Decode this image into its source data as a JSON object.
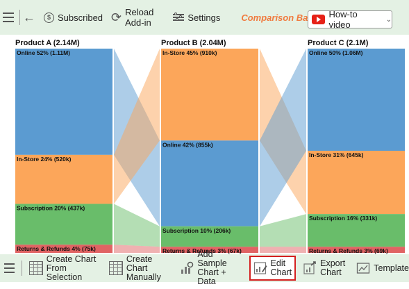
{
  "toolbar_top": {
    "subscribed_icon": "dollar-circle-icon",
    "subscribed_label": "Subscribed",
    "reload_line1": "Reload",
    "reload_line2": "Add-in",
    "settings_label": "Settings",
    "brand_title": "Comparison Bar ...",
    "howto_label": "How-to video"
  },
  "toolbar_bottom": {
    "create_selection_line1": "Create Chart",
    "create_selection_line2": "From Selection",
    "create_manual_line1": "Create Chart",
    "create_manual_line2": "Manually",
    "add_sample_line1": "Add Sample",
    "add_sample_line2": "Chart + Data",
    "edit_line1": "Edit",
    "edit_line2": "Chart",
    "export_line1": "Export",
    "export_line2": "Chart",
    "template_label": "Template"
  },
  "colors": {
    "online": "#5b9bd1",
    "in_store": "#fca65a",
    "subscription": "#69bd6a",
    "returns": "#e06363",
    "brand": "#f07b3f",
    "toolbar_bg": "#e4f1e4",
    "highlight": "#d42020"
  },
  "chart_data": {
    "type": "bar",
    "subtype": "stacked-100-percent-with-ribbons",
    "categories": [
      "Product A",
      "Product B",
      "Product C"
    ],
    "category_labels": [
      "Product A (2.14M)",
      "Product B (2.04M)",
      "Product C (2.1M)"
    ],
    "totals_m": [
      2.14,
      2.04,
      2.1
    ],
    "bars": [
      {
        "segments": [
          {
            "series": "online",
            "pct": 52,
            "label": "Online 52% (1.11M)"
          },
          {
            "series": "in_store",
            "pct": 24,
            "label": "In-Store 24% (520k)"
          },
          {
            "series": "subscription",
            "pct": 20,
            "label": "Subscription 20% (437k)"
          },
          {
            "series": "returns",
            "pct": 4,
            "label": "Returns & Refunds 4% (75k)"
          }
        ]
      },
      {
        "segments": [
          {
            "series": "in_store",
            "pct": 45,
            "label": "In-Store 45% (910k)"
          },
          {
            "series": "online",
            "pct": 42,
            "label": "Online 42% (855k)"
          },
          {
            "series": "subscription",
            "pct": 10,
            "label": "Subscription 10% (206k)"
          },
          {
            "series": "returns",
            "pct": 3,
            "label": "Returns & Refunds 3% (67k)"
          }
        ]
      },
      {
        "segments": [
          {
            "series": "online",
            "pct": 50,
            "label": "Online 50% (1.06M)"
          },
          {
            "series": "in_store",
            "pct": 31,
            "label": "In-Store 31% (645k)"
          },
          {
            "series": "subscription",
            "pct": 16,
            "label": "Subscription 16% (331k)"
          },
          {
            "series": "returns",
            "pct": 3,
            "label": "Returns & Refunds 3% (69k)"
          }
        ]
      }
    ]
  }
}
